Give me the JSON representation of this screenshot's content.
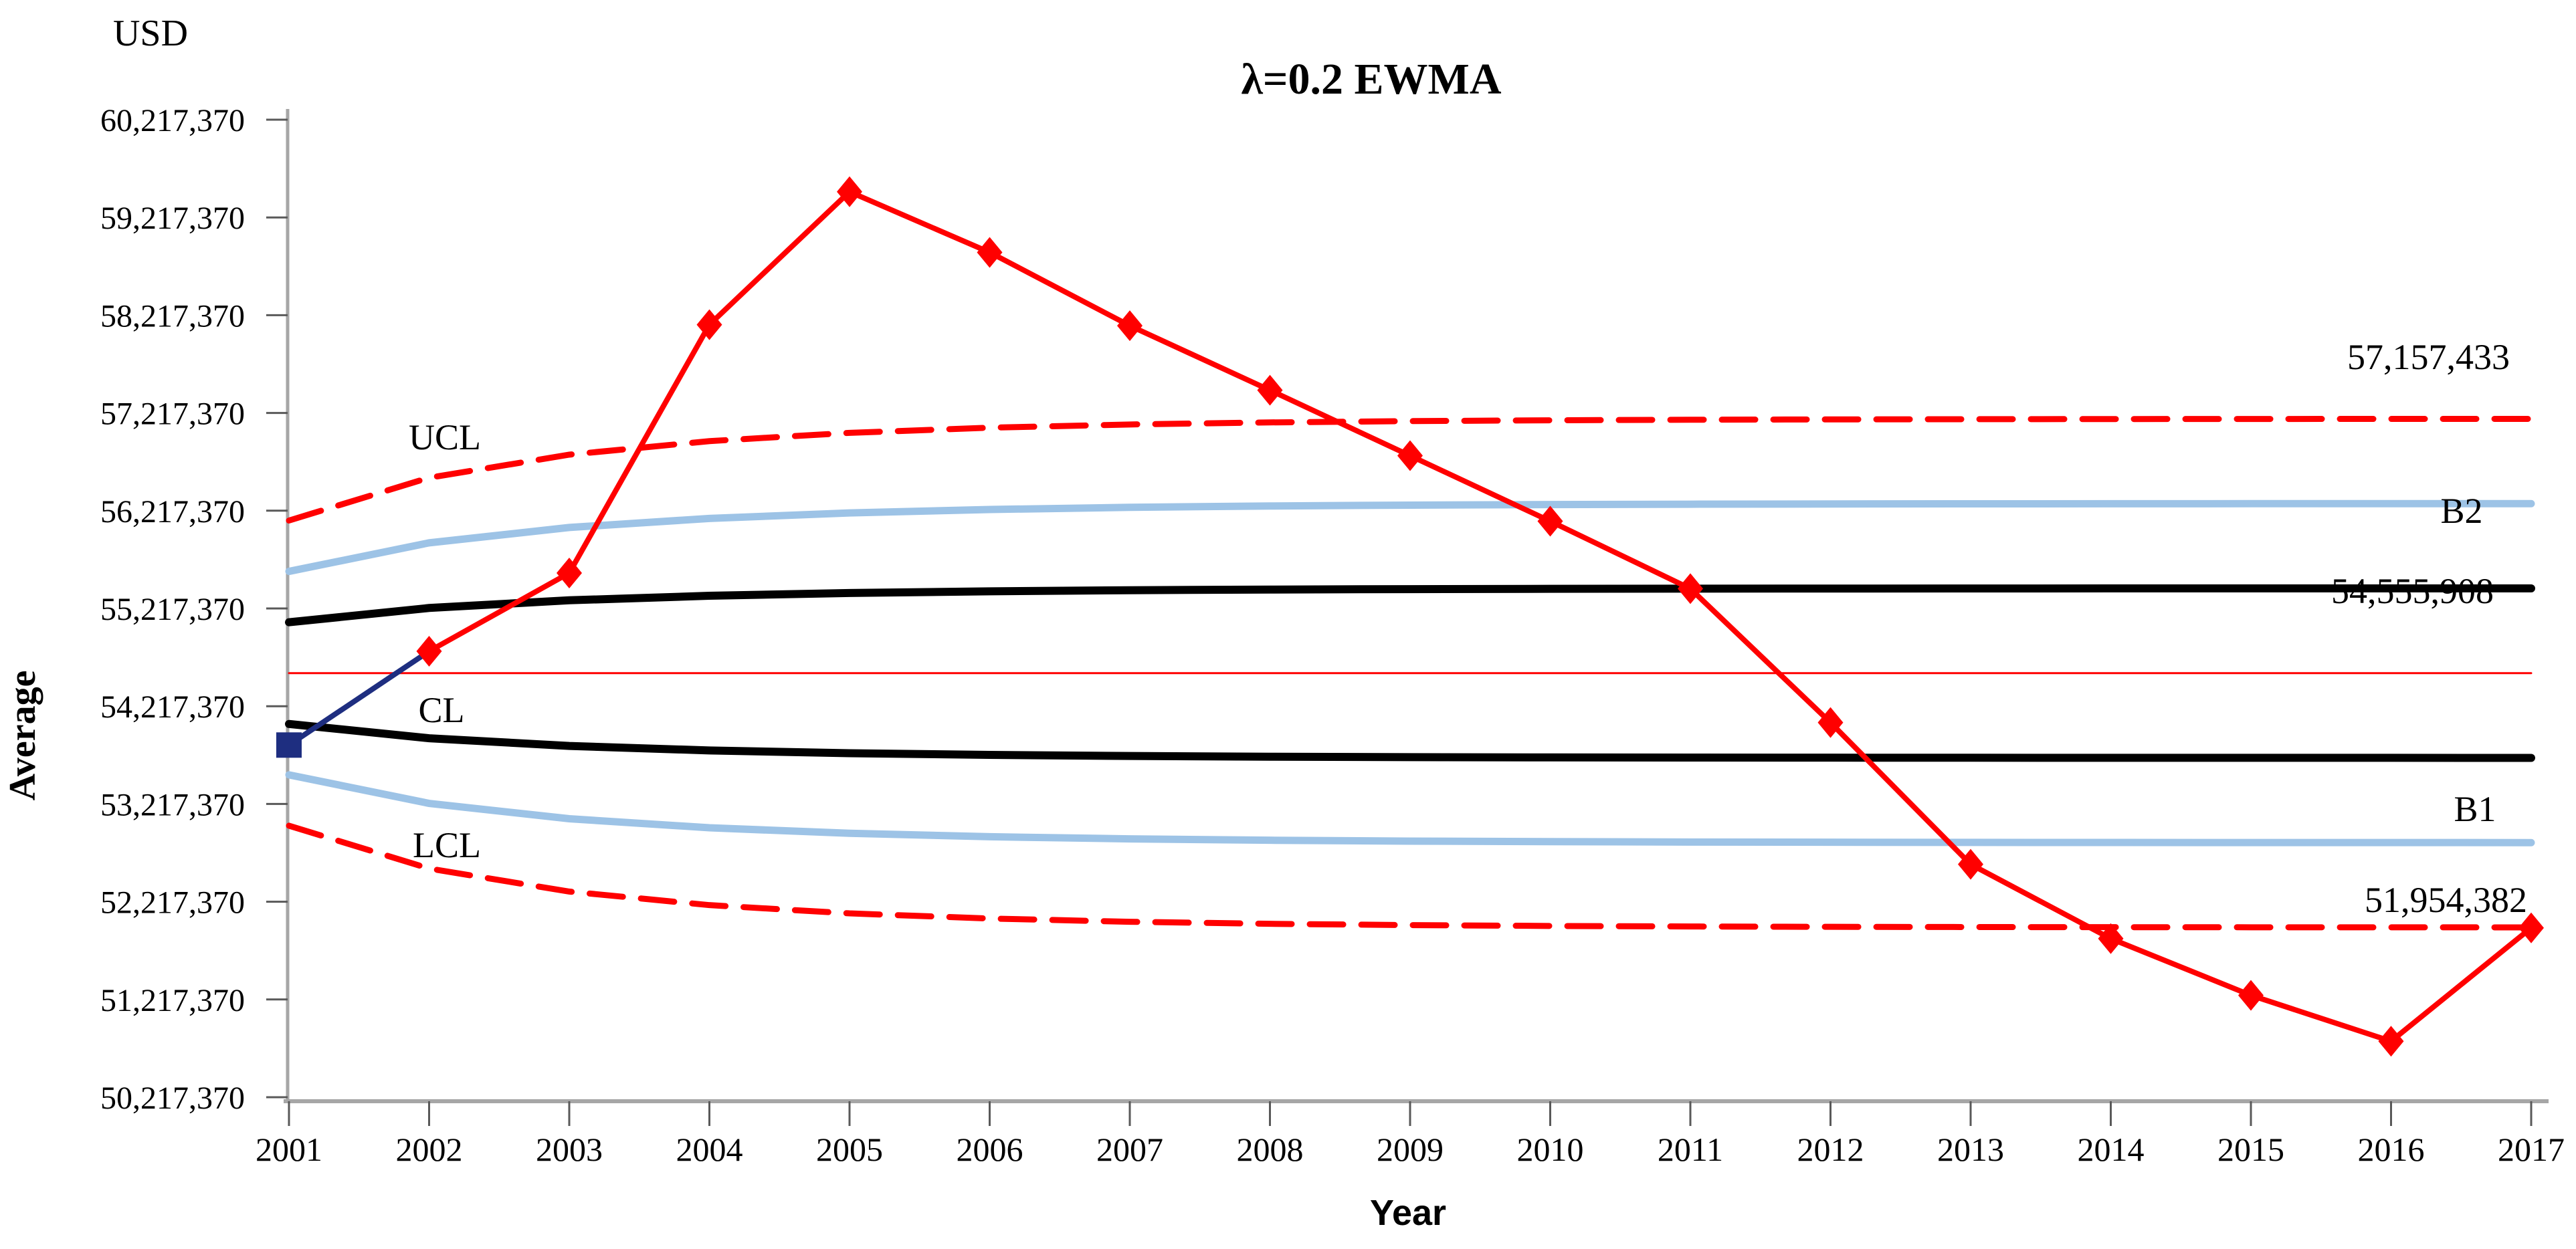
{
  "page": {
    "background": "#FFFFFF"
  },
  "labels": {
    "title": "λ=0.2  EWMA",
    "unit": "USD",
    "y_axis_title": "Average",
    "x_axis_title": "Year",
    "ucl": "UCL",
    "cl": "CL",
    "lcl": "LCL",
    "b2": "B2",
    "b1": "B1",
    "ucl_value": "57,157,433",
    "cl_value": "54,555,908",
    "lcl_value": "51,954,382"
  },
  "colors": {
    "series_red": "#FF0000",
    "start_navy": "#1E2E80",
    "zone_b_blue": "#9DC3E6",
    "zone_c_black": "#000000",
    "center_line_red": "#FF0000",
    "axis_gray": "#A6A6A6",
    "tick_gray": "#595959",
    "text_black": "#000000"
  },
  "chart_data": {
    "type": "line",
    "title": "λ=0.2  EWMA",
    "xlabel": "Year",
    "ylabel": "Average",
    "unit": "USD",
    "grid": false,
    "legend": "none",
    "x": [
      2001,
      2002,
      2003,
      2004,
      2005,
      2006,
      2007,
      2008,
      2009,
      2010,
      2011,
      2012,
      2013,
      2014,
      2015,
      2016,
      2017
    ],
    "xtick_labels": [
      "2001",
      "2002",
      "2003",
      "2004",
      "2005",
      "2006",
      "2007",
      "2008",
      "2009",
      "2010",
      "2011",
      "2012",
      "2013",
      "2014",
      "2015",
      "2016",
      "2017"
    ],
    "ylim": [
      50217370,
      60217370
    ],
    "ytick_step": 1000000,
    "ytick_labels": [
      "60,217,370",
      "59,217,370",
      "58,217,370",
      "57,217,370",
      "56,217,370",
      "55,217,370",
      "54,217,370",
      "53,217,370",
      "52,217,370",
      "51,217,370",
      "50,217,370"
    ],
    "center_line_value": 54555908,
    "ucl_asymptote": 57157433,
    "lcl_asymptote": 51954382,
    "series": [
      {
        "name": "EWMA",
        "color": "#FF0000",
        "marker": "diamond",
        "line_style": "solid",
        "values": [
          53820000,
          54780000,
          55580000,
          58120000,
          59480000,
          58860000,
          58110000,
          57450000,
          56780000,
          56110000,
          55420000,
          54050000,
          52600000,
          51840000,
          51260000,
          50790000,
          51950000
        ]
      },
      {
        "name": "UCL",
        "color": "#FF0000",
        "marker": "none",
        "line_style": "dashed",
        "values": [
          56116823,
          56554944,
          56790580,
          56929189,
          57013799,
          57066454,
          57099580,
          57120559,
          57133895,
          57142391,
          57147818,
          57151283,
          57153500,
          57154915,
          57155823,
          57156403,
          57156772
        ]
      },
      {
        "name": "LCL",
        "color": "#FF0000",
        "marker": "none",
        "line_style": "dashed",
        "values": [
          52994993,
          52556872,
          52321236,
          52182627,
          52098017,
          52045362,
          52012236,
          51991257,
          51977921,
          51969425,
          51963998,
          51960533,
          51958316,
          51956901,
          51955993,
          51955413,
          51955044
        ]
      },
      {
        "name": "B2",
        "color": "#9DC3E6",
        "marker": "none",
        "line_style": "solid",
        "values": [
          55596518,
          55888606,
          56045689,
          56138101,
          56194502,
          56229607,
          56251690,
          56265676,
          56274566,
          56280230,
          56283848,
          56286158,
          56287636,
          56288579,
          56289185,
          56289571,
          56289818
        ]
      },
      {
        "name": "B1",
        "color": "#9DC3E6",
        "marker": "none",
        "line_style": "solid",
        "values": [
          53515298,
          53223210,
          53066127,
          52973715,
          52917314,
          52882209,
          52860126,
          52846140,
          52837250,
          52831586,
          52827968,
          52825658,
          52824180,
          52823237,
          52822631,
          52822245,
          52821998
        ]
      },
      {
        "name": "Zone C upper",
        "color": "#000000",
        "marker": "none",
        "line_style": "solid",
        "values": [
          55076213,
          55222257,
          55300798,
          55347005,
          55375205,
          55392758,
          55403799,
          55410792,
          55415237,
          55418069,
          55419878,
          55421033,
          55421772,
          55422244,
          55422546,
          55422739,
          55422863
        ]
      },
      {
        "name": "Zone C lower",
        "color": "#000000",
        "marker": "none",
        "line_style": "solid",
        "values": [
          54035603,
          53889559,
          53811018,
          53764811,
          53736611,
          53719058,
          53708017,
          53701024,
          53696579,
          53693747,
          53691938,
          53690783,
          53690044,
          53689572,
          53689270,
          53689077,
          53688953
        ]
      },
      {
        "name": "CL",
        "color": "#FF0000",
        "marker": "none",
        "line_style": "thin-solid",
        "values": [
          54555908,
          54555908,
          54555908,
          54555908,
          54555908,
          54555908,
          54555908,
          54555908,
          54555908,
          54555908,
          54555908,
          54555908,
          54555908,
          54555908,
          54555908,
          54555908,
          54555908
        ]
      }
    ],
    "start_point": {
      "year": 2001,
      "value": 53820000,
      "marker": "square",
      "color": "#1E2E80"
    }
  }
}
